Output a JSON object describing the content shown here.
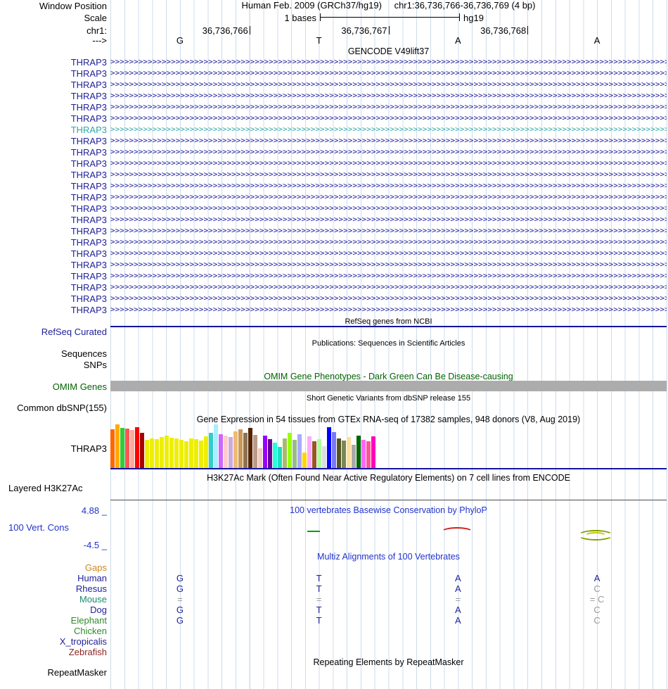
{
  "header": {
    "window_position_label": "Window Position",
    "assembly": "Human Feb. 2009 (GRCh37/hg19)",
    "position": "chr1:36,736,766-36,736,769 (4 bp)",
    "scale_label": "Scale",
    "scale_value": "1 bases",
    "scale_assembly": "hg19",
    "chrom_label": "chr1:",
    "coords": [
      "36,736,766",
      "36,736,767",
      "36,736,768"
    ],
    "strand_label": "--->",
    "bases": [
      "G",
      "T",
      "A",
      "A"
    ]
  },
  "gencode": {
    "title": "GENCODE V49lift37",
    "gene_label": "THRAP3",
    "rows": 23,
    "highlight_row": 6,
    "normal_color": "#21219B",
    "highlight_color": "#2FA8A8"
  },
  "refseq": {
    "title": "RefSeq genes from NCBI",
    "label": "RefSeq Curated"
  },
  "publications": {
    "title": "Publications: Sequences in Scientific Articles",
    "sequences_label": "Sequences",
    "snps_label": "SNPs"
  },
  "omim": {
    "title": "OMIM Gene Phenotypes - Dark Green Can Be Disease-causing",
    "label": "OMIM Genes",
    "title_color": "#006400",
    "bar_color": "#ACACAC"
  },
  "dbsnp": {
    "title": "Short Genetic Variants from dbSNP release 155",
    "label": "Common dbSNP(155)"
  },
  "gtex": {
    "title": "Gene Expression in 54 tissues from GTEx RNA-seq of 17382 samples, 948 donors (V8, Aug 2019)",
    "label": "THRAP3",
    "bars": [
      [
        "#FF6600",
        55
      ],
      [
        "#FFAA00",
        62
      ],
      [
        "#33CC33",
        57
      ],
      [
        "#FF5555",
        56
      ],
      [
        "#FFAA99",
        54
      ],
      [
        "#FF0000",
        58
      ],
      [
        "#AA0000",
        50
      ],
      [
        "#EEEE00",
        40
      ],
      [
        "#EEEE00",
        42
      ],
      [
        "#EEEE00",
        41
      ],
      [
        "#EEEE00",
        44
      ],
      [
        "#EEEE00",
        46
      ],
      [
        "#EEEE00",
        43
      ],
      [
        "#EEEE00",
        42
      ],
      [
        "#EEEE00",
        40
      ],
      [
        "#EEEE00",
        38
      ],
      [
        "#EEEE00",
        42
      ],
      [
        "#EEEE00",
        41
      ],
      [
        "#EEEE00",
        39
      ],
      [
        "#EEEE00",
        45
      ],
      [
        "#33CCCC",
        50
      ],
      [
        "#AAEEFF",
        62
      ],
      [
        "#CC66FF",
        48
      ],
      [
        "#FFCCCC",
        46
      ],
      [
        "#CCAADD",
        44
      ],
      [
        "#EEBB77",
        52
      ],
      [
        "#CC9955",
        55
      ],
      [
        "#8B7355",
        50
      ],
      [
        "#552200",
        57
      ],
      [
        "#BB9988",
        47
      ],
      [
        "#EECCBB",
        28
      ],
      [
        "#9900FF",
        46
      ],
      [
        "#660099",
        41
      ],
      [
        "#22FFDD",
        36
      ],
      [
        "#22DDBB",
        30
      ],
      [
        "#AABB66",
        42
      ],
      [
        "#99FF00",
        50
      ],
      [
        "#99BB88",
        40
      ],
      [
        "#AAAAFF",
        48
      ],
      [
        "#FFD700",
        22
      ],
      [
        "#FFAAFF",
        45
      ],
      [
        "#995522",
        38
      ],
      [
        "#AAFF99",
        41
      ],
      [
        "#DDDDDD",
        31
      ],
      [
        "#0000FF",
        58
      ],
      [
        "#7777FF",
        51
      ],
      [
        "#555522",
        42
      ],
      [
        "#778855",
        39
      ],
      [
        "#FFDD99",
        44
      ],
      [
        "#AAAAAA",
        33
      ],
      [
        "#006600",
        46
      ],
      [
        "#FF66FF",
        40
      ],
      [
        "#FF5599",
        38
      ],
      [
        "#FF00BB",
        45
      ]
    ]
  },
  "h3k27ac": {
    "title": "H3K27Ac Mark (Often Found Near Active Regulatory Elements) on 7 cell lines from ENCODE",
    "label": "Layered H3K27Ac"
  },
  "phylop": {
    "title": "100 vertebrates Basewise Conservation by PhyloP",
    "label": "100 Vert. Cons",
    "max": "4.88 _",
    "min": "-4.5 _"
  },
  "multiz": {
    "title": "Multiz Alignments of 100 Vertebrates",
    "rows": [
      {
        "label": "Gaps",
        "color": "#CC8822",
        "cells": [
          null,
          null,
          null,
          null
        ]
      },
      {
        "label": "Human",
        "color": "#21219B",
        "cells": [
          {
            "t": "G"
          },
          {
            "t": "T"
          },
          {
            "t": "A"
          },
          {
            "t": "A"
          }
        ]
      },
      {
        "label": "Rhesus",
        "color": "#21219B",
        "cells": [
          {
            "t": "G"
          },
          {
            "t": "T"
          },
          {
            "t": "A"
          },
          {
            "t": "C",
            "g": true
          }
        ]
      },
      {
        "label": "Mouse",
        "color": "#1E8A6E",
        "cells": [
          {
            "t": "=",
            "g": true
          },
          {
            "t": "=",
            "g": true
          },
          {
            "t": "=",
            "g": true
          },
          {
            "t": "= C",
            "g": true
          }
        ]
      },
      {
        "label": "Dog",
        "color": "#21219B",
        "cells": [
          {
            "t": "G"
          },
          {
            "t": "T"
          },
          {
            "t": "A"
          },
          {
            "t": "C",
            "g": true
          }
        ]
      },
      {
        "label": "Elephant",
        "color": "#2E8B2E",
        "cells": [
          {
            "t": "G"
          },
          {
            "t": "T"
          },
          {
            "t": "A"
          },
          {
            "t": "C",
            "g": true
          }
        ]
      },
      {
        "label": "Chicken",
        "color": "#2E8B2E",
        "cells": [
          null,
          null,
          null,
          null
        ]
      },
      {
        "label": "X_tropicalis",
        "color": "#21219B",
        "cells": [
          null,
          null,
          null,
          null
        ]
      },
      {
        "label": "Zebrafish",
        "color": "#8B2323",
        "cells": [
          null,
          null,
          null,
          null
        ]
      }
    ]
  },
  "repeatmasker": {
    "title": "Repeating Elements by RepeatMasker",
    "label": "RepeatMasker"
  }
}
